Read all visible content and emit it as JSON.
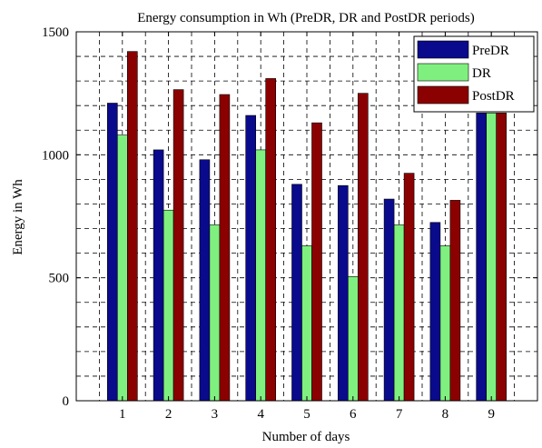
{
  "chart_data": {
    "type": "bar",
    "title": "Energy consumption in Wh (PreDR, DR and PostDR periods)",
    "xlabel": "Number of days",
    "ylabel": "Energy in Wh",
    "categories": [
      "1",
      "2",
      "3",
      "4",
      "5",
      "6",
      "7",
      "8",
      "9"
    ],
    "series": [
      {
        "name": "PreDR",
        "color": "#0a0a8c",
        "values": [
          1210,
          1020,
          980,
          1160,
          880,
          875,
          820,
          725,
          1170
        ]
      },
      {
        "name": "DR",
        "color": "#7ff07f",
        "values": [
          1080,
          775,
          715,
          1020,
          630,
          505,
          715,
          630,
          1170
        ]
      },
      {
        "name": "PostDR",
        "color": "#8b0000",
        "values": [
          1420,
          1265,
          1245,
          1310,
          1130,
          1250,
          925,
          815,
          1170
        ]
      }
    ],
    "ylim": [
      0,
      1500
    ],
    "yticks": [
      0,
      500,
      1000,
      1500
    ],
    "grid": true,
    "grid_style": "dashed",
    "legend_position": "top-right"
  }
}
